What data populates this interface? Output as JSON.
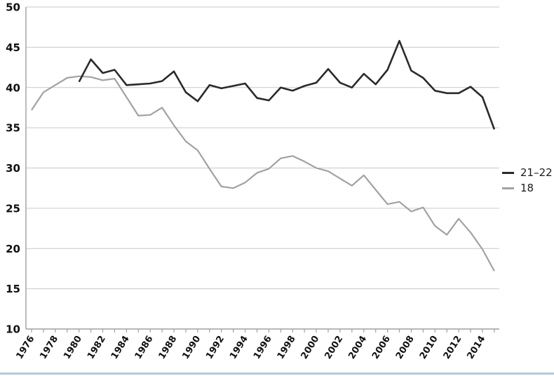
{
  "chart_data": {
    "type": "line",
    "title": "",
    "xlabel": "",
    "ylabel": "",
    "ylim": [
      10,
      50
    ],
    "y_ticks": [
      10,
      15,
      20,
      25,
      30,
      35,
      40,
      45,
      50
    ],
    "x": [
      1976,
      1977,
      1978,
      1979,
      1980,
      1981,
      1982,
      1983,
      1984,
      1985,
      1986,
      1987,
      1988,
      1989,
      1990,
      1991,
      1992,
      1993,
      1994,
      1995,
      1996,
      1997,
      1998,
      1999,
      2000,
      2001,
      2002,
      2003,
      2004,
      2005,
      2006,
      2007,
      2008,
      2009,
      2010,
      2011,
      2012,
      2013,
      2014,
      2015
    ],
    "x_tick_labels": [
      "1976",
      "1978",
      "1980",
      "1982",
      "1984",
      "1986",
      "1988",
      "1990",
      "1992",
      "1994",
      "1996",
      "1998",
      "2000",
      "2002",
      "2004",
      "2006",
      "2008",
      "2010",
      "2012",
      "2014"
    ],
    "grid": "horizontal",
    "legend_position": "right-middle",
    "series": [
      {
        "name": "21–22",
        "color": "#2a2a2a",
        "stroke_width": 2.6,
        "values": [
          null,
          null,
          null,
          null,
          40.7,
          43.5,
          41.8,
          42.2,
          40.3,
          40.4,
          40.5,
          40.8,
          42.0,
          39.4,
          38.3,
          40.3,
          39.9,
          40.2,
          40.5,
          38.7,
          38.4,
          40.0,
          39.6,
          40.2,
          40.6,
          42.3,
          40.6,
          40.0,
          41.7,
          40.4,
          42.2,
          45.8,
          42.1,
          41.2,
          39.6,
          39.3,
          39.3,
          40.1,
          38.8,
          34.8
        ]
      },
      {
        "name": "18",
        "color": "#a2a2a2",
        "stroke_width": 2.2,
        "values": [
          37.2,
          39.4,
          40.3,
          41.2,
          41.4,
          41.3,
          40.9,
          41.1,
          38.8,
          36.5,
          36.6,
          37.5,
          35.3,
          33.3,
          32.2,
          29.9,
          27.7,
          27.5,
          28.2,
          29.4,
          29.9,
          31.2,
          31.5,
          30.8,
          30.0,
          29.6,
          28.7,
          27.8,
          29.1,
          27.3,
          25.5,
          25.8,
          24.6,
          25.1,
          22.8,
          21.7,
          23.7,
          22.0,
          19.9,
          17.2
        ]
      }
    ]
  },
  "colors": {
    "grid": "#c9c9c9",
    "axis": "#a0a0a0",
    "bottom_rule": "#b5c8e0"
  }
}
